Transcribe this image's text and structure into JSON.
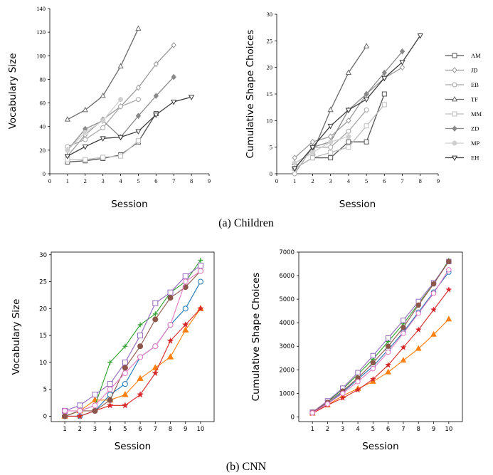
{
  "captions": {
    "top": "(a) Children",
    "bottom": "(b) CNN"
  },
  "chart_data": [
    {
      "id": "children-vocab",
      "type": "line",
      "xlabel": "Session",
      "ylabel": "Vocabulary Size",
      "xlim": [
        0,
        9
      ],
      "ylim": [
        0,
        140
      ],
      "xticks": [
        0,
        1,
        2,
        3,
        4,
        5,
        6,
        7,
        8,
        9
      ],
      "yticks": [
        0,
        20,
        40,
        60,
        80,
        100,
        120,
        140
      ],
      "series": [
        {
          "name": "AM",
          "color": "#555555",
          "marker": "square",
          "x": [
            1,
            2,
            3,
            4,
            5,
            6
          ],
          "y": [
            10,
            11,
            13,
            16,
            27,
            51
          ]
        },
        {
          "name": "JD",
          "color": "#9a9a9a",
          "marker": "diamond",
          "x": [
            1,
            2,
            3,
            4,
            5,
            6,
            7
          ],
          "y": [
            15,
            33,
            46,
            57,
            73,
            93,
            109
          ]
        },
        {
          "name": "EB",
          "color": "#a8a8a8",
          "marker": "circle",
          "x": [
            1,
            2,
            3,
            4,
            5
          ],
          "y": [
            23,
            29,
            39,
            57,
            63
          ]
        },
        {
          "name": "TF",
          "color": "#6a6a6a",
          "marker": "triangle-up",
          "x": [
            1,
            2,
            3,
            4,
            5
          ],
          "y": [
            46,
            54,
            66,
            91,
            123
          ]
        },
        {
          "name": "MM",
          "color": "#bdbdbd",
          "marker": "square",
          "x": [
            1,
            2,
            3,
            4,
            5
          ],
          "y": [
            12,
            12,
            14,
            15,
            28
          ]
        },
        {
          "name": "ZD",
          "color": "#8a8a8a",
          "marker": "diamond-filled",
          "x": [
            1,
            2,
            3,
            4,
            5,
            6,
            7
          ],
          "y": [
            20,
            38,
            45,
            31,
            49,
            66,
            82
          ]
        },
        {
          "name": "MP",
          "color": "#d0d0d0",
          "marker": "circle-filled",
          "x": [
            1,
            2,
            3,
            4
          ],
          "y": [
            20,
            35,
            45,
            63
          ]
        },
        {
          "name": "EH",
          "color": "#3c3c3c",
          "marker": "triangle-down",
          "x": [
            1,
            2,
            3,
            4,
            5,
            6,
            7,
            8
          ],
          "y": [
            15,
            23,
            30,
            31,
            36,
            50,
            61,
            65
          ]
        }
      ]
    },
    {
      "id": "children-shape",
      "type": "line",
      "xlabel": "Session",
      "ylabel": "Cumulative Shape Choices",
      "xlim": [
        0,
        9
      ],
      "ylim": [
        0,
        30
      ],
      "xticks": [
        0,
        1,
        2,
        3,
        4,
        5,
        6,
        7,
        8,
        9
      ],
      "yticks": [
        0,
        5,
        10,
        15,
        20,
        25,
        30
      ],
      "legend": "right",
      "series": [
        {
          "name": "AM",
          "color": "#555555",
          "marker": "square",
          "x": [
            1,
            2,
            3,
            4,
            5,
            6
          ],
          "y": [
            1,
            3,
            3,
            6,
            6,
            15
          ]
        },
        {
          "name": "JD",
          "color": "#9a9a9a",
          "marker": "diamond",
          "x": [
            1,
            2,
            3,
            4,
            5,
            6,
            7
          ],
          "y": [
            3,
            6,
            7,
            10,
            15,
            18,
            20
          ]
        },
        {
          "name": "EB",
          "color": "#a8a8a8",
          "marker": "circle",
          "x": [
            1,
            2,
            3,
            4,
            5
          ],
          "y": [
            0,
            5,
            5,
            8,
            12
          ]
        },
        {
          "name": "TF",
          "color": "#6a6a6a",
          "marker": "triangle-up",
          "x": [
            1,
            2,
            3,
            4,
            5
          ],
          "y": [
            2,
            4,
            12,
            19,
            24
          ]
        },
        {
          "name": "MM",
          "color": "#bdbdbd",
          "marker": "square",
          "x": [
            1,
            2,
            3,
            4,
            5,
            6
          ],
          "y": [
            1,
            3,
            4,
            5,
            9,
            13
          ]
        },
        {
          "name": "ZD",
          "color": "#8a8a8a",
          "marker": "diamond-filled",
          "x": [
            1,
            2,
            3,
            4,
            5,
            6,
            7
          ],
          "y": [
            1,
            5,
            6,
            12,
            15,
            19,
            23
          ]
        },
        {
          "name": "MP",
          "color": "#d0d0d0",
          "marker": "circle-filled",
          "x": [
            1,
            2,
            3,
            4
          ],
          "y": [
            2,
            4,
            6,
            7
          ]
        },
        {
          "name": "EH",
          "color": "#3c3c3c",
          "marker": "triangle-down",
          "x": [
            1,
            2,
            3,
            4,
            5,
            6,
            7,
            8
          ],
          "y": [
            1,
            5,
            9,
            12,
            14,
            18,
            21,
            26
          ]
        }
      ]
    },
    {
      "id": "cnn-vocab",
      "type": "line",
      "xlabel": "Session",
      "ylabel": "Vocabulary Size",
      "xlim": [
        0.1,
        10.9
      ],
      "ylim": [
        -1,
        30.5
      ],
      "xticks": [
        1,
        2,
        3,
        4,
        5,
        6,
        7,
        8,
        9,
        10
      ],
      "yticks": [
        0,
        5,
        10,
        15,
        20,
        25,
        30
      ],
      "series": [
        {
          "color": "#1f77b4",
          "marker": "circle",
          "x": [
            1,
            2,
            3,
            4,
            5,
            6,
            7,
            8,
            9,
            10
          ],
          "y": [
            0,
            0,
            1,
            4,
            6,
            11,
            13,
            17,
            20,
            25
          ]
        },
        {
          "color": "#ff7f0e",
          "marker": "triangle-filled",
          "x": [
            1,
            2,
            3,
            4,
            5,
            6,
            7,
            8,
            9,
            10
          ],
          "y": [
            0,
            1,
            3,
            3,
            4,
            7,
            9,
            11,
            16,
            20
          ]
        },
        {
          "color": "#2ca02c",
          "marker": "plus",
          "x": [
            1,
            2,
            3,
            4,
            5,
            6,
            7,
            8,
            9,
            10
          ],
          "y": [
            0,
            1,
            2,
            10,
            13,
            17,
            19,
            23,
            25,
            29
          ]
        },
        {
          "color": "#d62728",
          "marker": "star",
          "x": [
            1,
            2,
            3,
            4,
            5,
            6,
            7,
            8,
            9,
            10
          ],
          "y": [
            0,
            0,
            1,
            2,
            2,
            4,
            8,
            14,
            17,
            20
          ]
        },
        {
          "color": "#9467bd",
          "marker": "square",
          "x": [
            1,
            2,
            3,
            4,
            5,
            6,
            7,
            8,
            9,
            10
          ],
          "y": [
            1,
            2,
            4,
            6,
            10,
            15,
            21,
            23,
            26,
            28
          ]
        },
        {
          "color": "#8c564b",
          "marker": "circle-filled",
          "x": [
            1,
            2,
            3,
            4,
            5,
            6,
            7,
            8,
            9,
            10
          ],
          "y": [
            0,
            1,
            1,
            3,
            9,
            13,
            18,
            22,
            24,
            27
          ]
        },
        {
          "color": "#e377c2",
          "marker": "circle",
          "x": [
            1,
            2,
            3,
            4,
            5,
            6,
            7,
            8,
            9,
            10
          ],
          "y": [
            1,
            1,
            2,
            5,
            8,
            11,
            13,
            17,
            25,
            27
          ]
        }
      ]
    },
    {
      "id": "cnn-shape",
      "type": "line",
      "xlabel": "Session",
      "ylabel": "Cumulative Shape Choices",
      "xlim": [
        0.1,
        10.9
      ],
      "ylim": [
        -200,
        7000
      ],
      "xticks": [
        1,
        2,
        3,
        4,
        5,
        6,
        7,
        8,
        9,
        10
      ],
      "yticks": [
        0,
        1000,
        2000,
        3000,
        4000,
        5000,
        6000,
        7000
      ],
      "series": [
        {
          "color": "#1f77b4",
          "marker": "circle",
          "x": [
            1,
            2,
            3,
            4,
            5,
            6,
            7,
            8,
            9,
            10
          ],
          "y": [
            170,
            560,
            1050,
            1600,
            2150,
            2850,
            3600,
            4450,
            5300,
            6150
          ]
        },
        {
          "color": "#ff7f0e",
          "marker": "triangle-filled",
          "x": [
            1,
            2,
            3,
            4,
            5,
            6,
            7,
            8,
            9,
            10
          ],
          "y": [
            150,
            500,
            900,
            1200,
            1500,
            1900,
            2400,
            2900,
            3500,
            4150
          ]
        },
        {
          "color": "#2ca02c",
          "marker": "plus",
          "x": [
            1,
            2,
            3,
            4,
            5,
            6,
            7,
            8,
            9,
            10
          ],
          "y": [
            200,
            650,
            1180,
            1800,
            2450,
            3200,
            3950,
            4800,
            5650,
            6650
          ]
        },
        {
          "color": "#d62728",
          "marker": "star",
          "x": [
            1,
            2,
            3,
            4,
            5,
            6,
            7,
            8,
            9,
            10
          ],
          "y": [
            150,
            500,
            800,
            1150,
            1600,
            2200,
            2950,
            3700,
            4550,
            5400
          ]
        },
        {
          "color": "#9467bd",
          "marker": "square",
          "x": [
            1,
            2,
            3,
            4,
            5,
            6,
            7,
            8,
            9,
            10
          ],
          "y": [
            200,
            680,
            1220,
            1880,
            2600,
            3350,
            4100,
            4900,
            5700,
            6600
          ]
        },
        {
          "color": "#8c564b",
          "marker": "circle-filled",
          "x": [
            1,
            2,
            3,
            4,
            5,
            6,
            7,
            8,
            9,
            10
          ],
          "y": [
            190,
            620,
            1100,
            1650,
            2300,
            3000,
            3800,
            4750,
            5650,
            6600
          ]
        },
        {
          "color": "#e377c2",
          "marker": "circle",
          "x": [
            1,
            2,
            3,
            4,
            5,
            6,
            7,
            8,
            9,
            10
          ],
          "y": [
            170,
            550,
            1000,
            1500,
            2050,
            2750,
            3550,
            4400,
            5250,
            6250
          ]
        }
      ]
    }
  ]
}
